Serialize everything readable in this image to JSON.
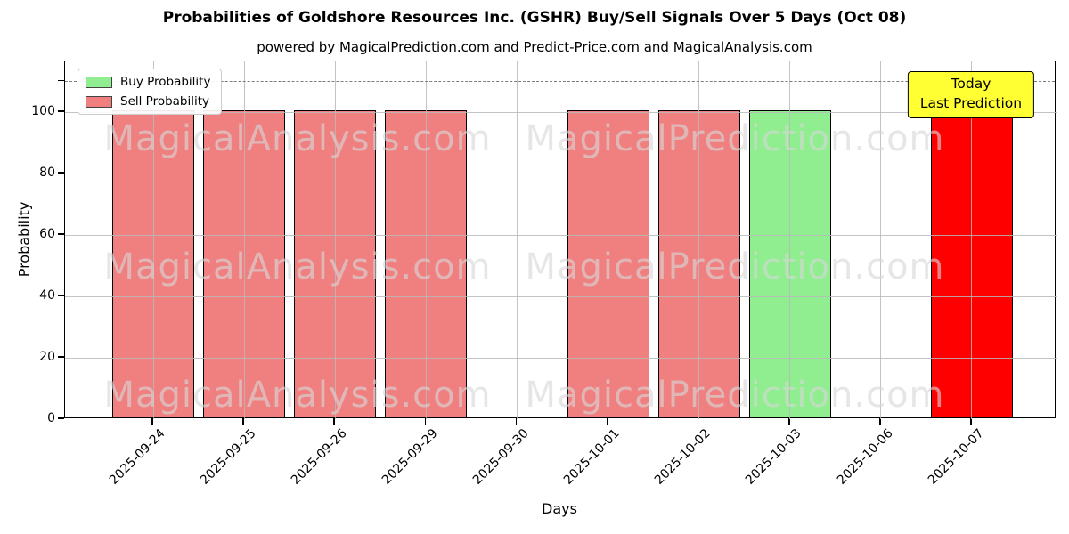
{
  "chart_data": {
    "type": "bar",
    "title": "Probabilities of Goldshore Resources Inc. (GSHR) Buy/Sell Signals Over 5 Days (Oct 08)",
    "subtitle": "powered by MagicalPrediction.com and Predict-Price.com and MagicalAnalysis.com",
    "xlabel": "Days",
    "ylabel": "Probability",
    "ylim": [
      0,
      116.5
    ],
    "yticks": [
      0,
      20,
      40,
      60,
      80,
      100
    ],
    "minor_yticks": [
      110
    ],
    "grid": true,
    "legend_position": "upper left",
    "categories": [
      "2025-09-24",
      "2025-09-25",
      "2025-09-26",
      "2025-09-29",
      "2025-09-30",
      "2025-10-01",
      "2025-10-02",
      "2025-10-03",
      "2025-10-06",
      "2025-10-07"
    ],
    "series": [
      {
        "name": "Buy Probability",
        "color": "#90ee90",
        "values": [
          0,
          0,
          0,
          0,
          0,
          0,
          0,
          100,
          0,
          0
        ]
      },
      {
        "name": "Sell Probability",
        "color": "#f08080",
        "values": [
          100,
          100,
          100,
          100,
          0,
          100,
          100,
          0,
          0,
          0
        ]
      },
      {
        "name": "Today Prediction",
        "color": "#ff0000",
        "values": [
          0,
          0,
          0,
          0,
          0,
          0,
          0,
          0,
          0,
          100
        ]
      }
    ],
    "threshold_line": {
      "y": 110,
      "style": "dashed",
      "color": "#7b7b7b"
    }
  },
  "legend": {
    "items": [
      {
        "label": "Buy Probability",
        "color": "#90ee90"
      },
      {
        "label": "Sell Probability",
        "color": "#f08080"
      }
    ]
  },
  "annotation": {
    "lines": [
      "Today",
      "Last Prediction"
    ],
    "bg_color": "#ffff33",
    "x_category": "2025-10-07"
  },
  "watermarks": [
    "MagicalAnalysis.com",
    "MagicalPrediction.com"
  ]
}
